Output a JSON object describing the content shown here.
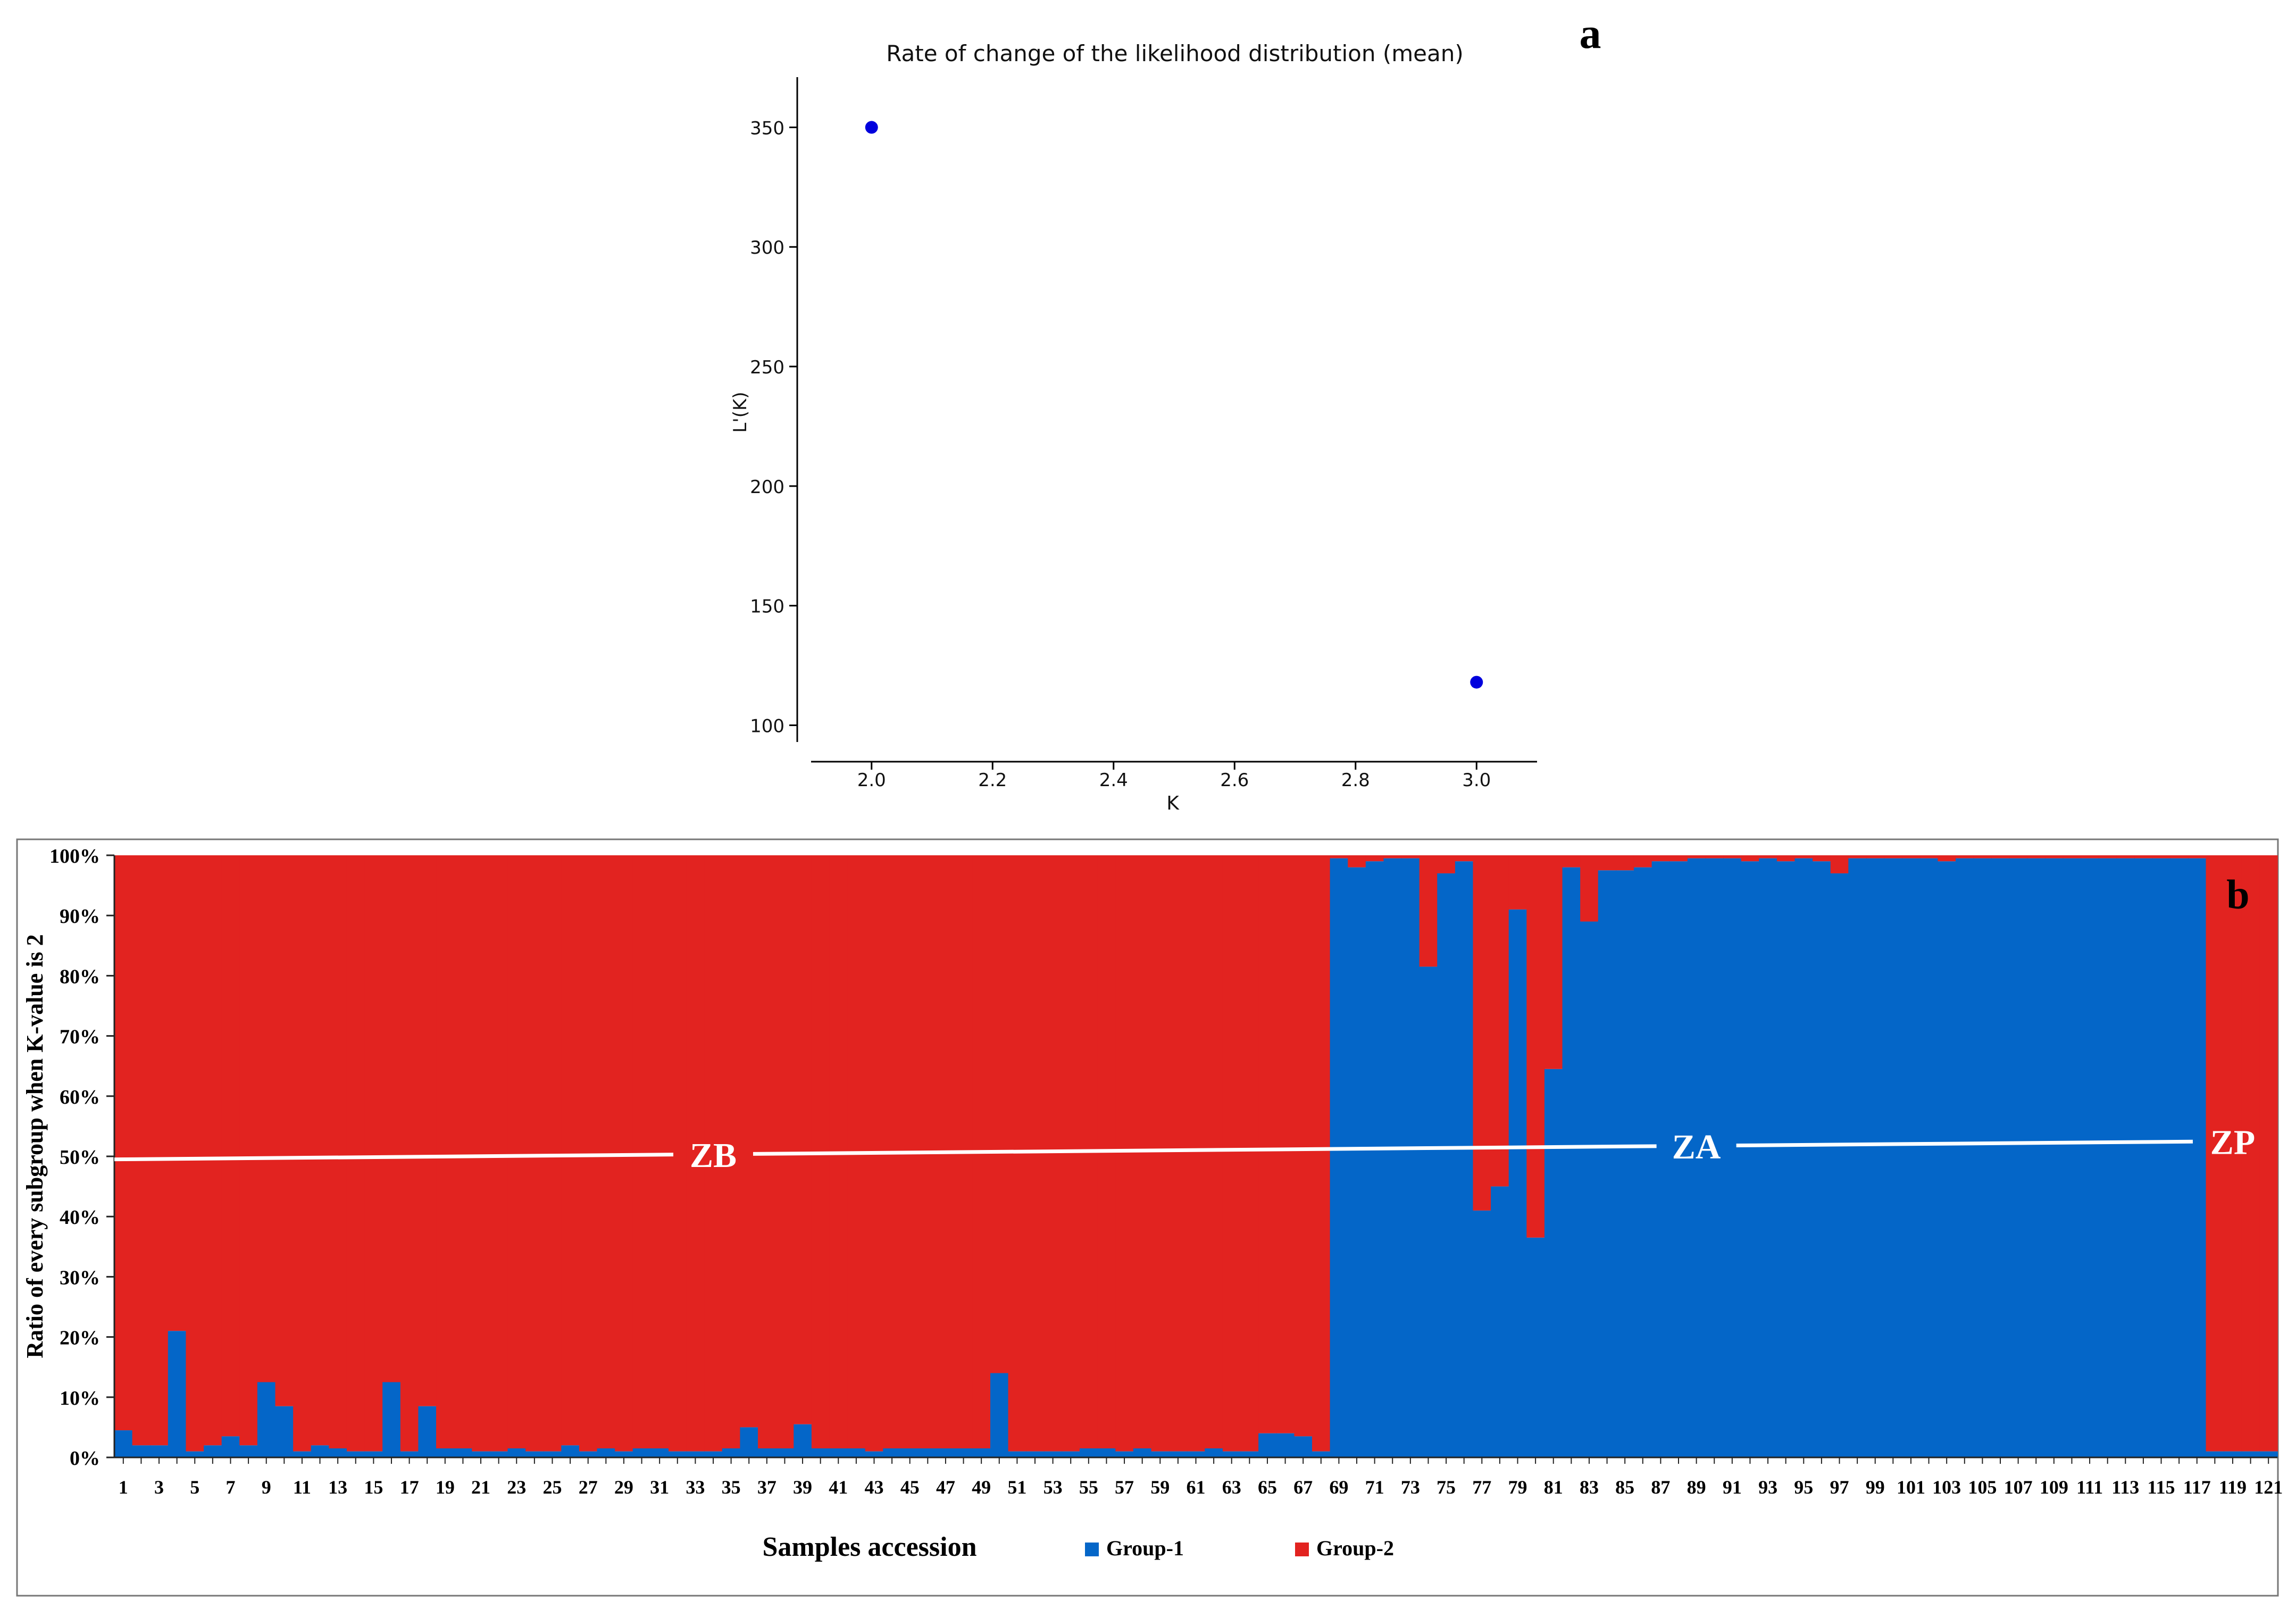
{
  "panel_a": {
    "letter": "a",
    "chart_data": {
      "type": "scatter",
      "title": "Rate of change of the likelihood distribution (mean)",
      "xlabel": "K",
      "ylabel": "L'(K)",
      "xlim": [
        1.9,
        3.1
      ],
      "ylim": [
        93,
        371
      ],
      "xticks": [
        2.0,
        2.2,
        2.4,
        2.6,
        2.8,
        3.0
      ],
      "xtick_labels": [
        "2.0",
        "2.2",
        "2.4",
        "2.6",
        "2.8",
        "3.0"
      ],
      "yticks": [
        100,
        150,
        200,
        250,
        300,
        350
      ],
      "ytick_labels": [
        "100",
        "150",
        "200",
        "250",
        "300",
        "350"
      ],
      "points": [
        {
          "x": 2.0,
          "y": 350
        },
        {
          "x": 3.0,
          "y": 118
        }
      ],
      "point_color": "#0000dd",
      "grid": false
    }
  },
  "panel_b": {
    "letter": "b",
    "chart_data": {
      "type": "bar",
      "stacked": true,
      "xlabel": "Samples accession",
      "ylabel": "Ratio of every subgroup when K-value is 2",
      "ylim": [
        0,
        100
      ],
      "yticks": [
        0,
        10,
        20,
        30,
        40,
        50,
        60,
        70,
        80,
        90,
        100
      ],
      "ytick_labels": [
        "0%",
        "10%",
        "20%",
        "30%",
        "40%",
        "50%",
        "60%",
        "70%",
        "80%",
        "90%",
        "100%"
      ],
      "categories_count": 121,
      "xtick_step": 2,
      "series": [
        {
          "name": "Group-1",
          "color": "#0466c8",
          "values": [
            4.5,
            2,
            2,
            21,
            1,
            2,
            3.5,
            2,
            12.5,
            8.5,
            1,
            2,
            1.5,
            1,
            1,
            12.5,
            1,
            8.5,
            1.5,
            1.5,
            1,
            1,
            1.5,
            1,
            1,
            2,
            1,
            1.5,
            1,
            1.5,
            1.5,
            1,
            1,
            1,
            1.5,
            5,
            1.5,
            1.5,
            5.5,
            1.5,
            1.5,
            1.5,
            1,
            1.5,
            1.5,
            1.5,
            1.5,
            1.5,
            1.5,
            14,
            1,
            1,
            1,
            1,
            1.5,
            1.5,
            1,
            1.5,
            1,
            1,
            1,
            1.5,
            1,
            1,
            4,
            4,
            3.5,
            1,
            99.5,
            98,
            99,
            99.5,
            99.5,
            81.5,
            97,
            99,
            41,
            45,
            91,
            36.5,
            64.5,
            98,
            89,
            97.5,
            97.5,
            98,
            99,
            99,
            99.5,
            99.5,
            99.5,
            99,
            99.5,
            99,
            99.5,
            99,
            97,
            99.5,
            99.5,
            99.5,
            99.5,
            99.5,
            99,
            99.5,
            99.5,
            99.5,
            99.5,
            99.5,
            99.5,
            99.5,
            99.5,
            99.5,
            99.5,
            99.5,
            99.5,
            99.5,
            99.5,
            1,
            1,
            1,
            1,
            1,
            2
          ]
        },
        {
          "name": "Group-2",
          "color": "#e22320",
          "values": [
            95.5,
            98,
            98,
            79,
            99,
            98,
            96.5,
            98,
            87.5,
            91.5,
            99,
            98,
            98.5,
            99,
            99,
            87.5,
            99,
            91.5,
            98.5,
            98.5,
            99,
            99,
            98.5,
            99,
            99,
            98,
            99,
            98.5,
            99,
            98.5,
            98.5,
            99,
            99,
            99,
            98.5,
            95,
            98.5,
            98.5,
            94.5,
            98.5,
            98.5,
            98.5,
            99,
            98.5,
            98.5,
            98.5,
            98.5,
            98.5,
            98.5,
            86,
            99,
            99,
            99,
            99,
            98.5,
            98.5,
            99,
            98.5,
            99,
            99,
            99,
            98.5,
            99,
            99,
            96,
            96,
            96.5,
            99,
            0.5,
            2,
            1,
            0.5,
            0.5,
            18.5,
            3,
            1,
            59,
            55,
            9,
            63.5,
            35.5,
            2,
            11,
            2.5,
            2.5,
            2,
            1,
            1,
            0.5,
            0.5,
            0.5,
            1,
            0.5,
            1,
            0.5,
            1,
            3,
            0.5,
            0.5,
            0.5,
            0.5,
            0.5,
            1,
            0.5,
            0.5,
            0.5,
            0.5,
            0.5,
            0.5,
            0.5,
            0.5,
            0.5,
            0.5,
            0.5,
            0.5,
            0.5,
            0.5,
            99,
            99,
            99,
            99,
            99,
            98
          ]
        }
      ],
      "legend": [
        {
          "label": "Group-1",
          "color": "#0466c8"
        },
        {
          "label": "Group-2",
          "color": "#e22320"
        }
      ],
      "legend_placement": "bottom",
      "annotations": [
        {
          "text": "ZB",
          "sample": 34
        },
        {
          "text": "ZA",
          "sample": 89
        },
        {
          "text": "ZP",
          "sample": 119
        }
      ]
    }
  }
}
